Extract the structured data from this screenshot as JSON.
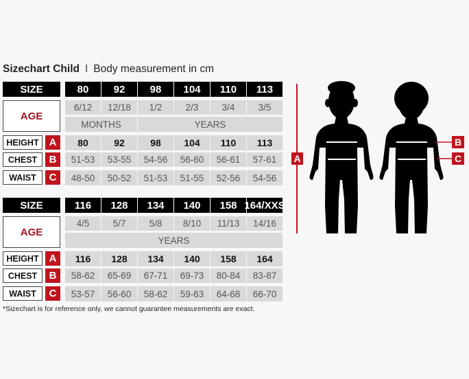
{
  "title": {
    "main": "Sizechart Child",
    "separator": "I",
    "sub": "Body measurement in cm"
  },
  "labels": {
    "size": "SIZE",
    "age": "AGE",
    "height": "HEIGHT",
    "chest": "CHEST",
    "waist": "WAIST"
  },
  "letters": {
    "height": "A",
    "chest": "B",
    "waist": "C"
  },
  "tables": [
    {
      "sizes": [
        "80",
        "92",
        "98",
        "104",
        "110",
        "113"
      ],
      "ages": [
        "6/12",
        "12/18",
        "1/2",
        "2/3",
        "3/4",
        "3/5"
      ],
      "age_units": [
        {
          "label": "MONTHS",
          "span": 2
        },
        {
          "label": "YEARS",
          "span": 4
        }
      ],
      "height": [
        "80",
        "92",
        "98",
        "104",
        "110",
        "113"
      ],
      "chest": [
        "51-53",
        "53-55",
        "54-56",
        "56-60",
        "56-61",
        "57-61"
      ],
      "waist": [
        "48-50",
        "50-52",
        "51-53",
        "51-55",
        "52-56",
        "54-56"
      ]
    },
    {
      "sizes": [
        "116",
        "128",
        "134",
        "140",
        "158",
        "164/XXS"
      ],
      "ages": [
        "4/5",
        "5/7",
        "5/8",
        "8/10",
        "11/13",
        "14/16"
      ],
      "age_units": [
        {
          "label": "YEARS",
          "span": 6
        }
      ],
      "height": [
        "116",
        "128",
        "134",
        "140",
        "158",
        "164"
      ],
      "chest": [
        "58-62",
        "65-69",
        "67-71",
        "69-73",
        "80-84",
        "83-87"
      ],
      "waist": [
        "53-57",
        "56-60",
        "58-62",
        "59-63",
        "64-68",
        "66-70"
      ]
    }
  ],
  "footnote": "*Sizechart is for reference only, we cannot guarantee measurements are exact.",
  "figure": {
    "letters": [
      "A",
      "B",
      "C"
    ]
  },
  "colors": {
    "accent": "#c0141e",
    "header": "#000000",
    "cell": "#d9d9d9"
  }
}
